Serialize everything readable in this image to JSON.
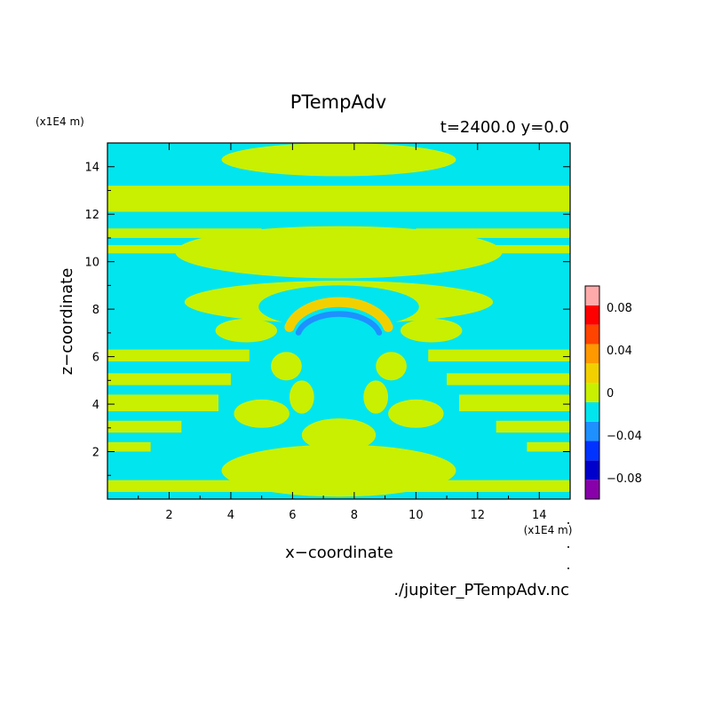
{
  "chart_data": {
    "type": "heatmap",
    "title": "PTempAdv",
    "subtitle": "t=2400.0 y=0.0",
    "xlabel": "x−coordinate",
    "ylabel": "z−coordinate",
    "x_unit": "(x1E4 m)",
    "y_unit": "(x1E4 m)",
    "xlim": [
      0,
      15
    ],
    "ylim": [
      0,
      15
    ],
    "x_ticks": [
      2,
      4,
      6,
      8,
      10,
      12,
      14
    ],
    "y_ticks": [
      2,
      4,
      6,
      8,
      10,
      12,
      14
    ],
    "source": "./jupiter_PTempAdv.nc",
    "colorbar": {
      "levels": [
        -0.1,
        -0.08,
        -0.06,
        -0.04,
        -0.02,
        0,
        0.02,
        0.04,
        0.06,
        0.08,
        0.1
      ],
      "colors": [
        "#8800aa",
        "#0000cc",
        "#0033ff",
        "#1e90ff",
        "#00e5ee",
        "#c8f000",
        "#f2d000",
        "#ff9900",
        "#ff4400",
        "#ff0000",
        "#ffaaaa"
      ],
      "tick_labels": [
        {
          "value": 0.08,
          "label": "0.08"
        },
        {
          "value": 0.04,
          "label": "0.04"
        },
        {
          "value": 0,
          "label": "0"
        },
        {
          "value": -0.04,
          "label": "−0.04"
        },
        {
          "value": -0.08,
          "label": "−0.08"
        }
      ]
    },
    "background_value": -0.01,
    "regions": [
      {
        "kind": "band",
        "z": [
          13.2,
          12.1
        ],
        "x": [
          0,
          15
        ],
        "value": 0.01
      },
      {
        "kind": "band",
        "z": [
          11.4,
          11.0
        ],
        "x": [
          0,
          5.0
        ],
        "value": 0.01
      },
      {
        "kind": "band",
        "z": [
          11.4,
          11.0
        ],
        "x": [
          10.0,
          15
        ],
        "value": 0.01
      },
      {
        "kind": "band",
        "z": [
          10.7,
          10.35
        ],
        "x": [
          0,
          4.2
        ],
        "value": 0.01
      },
      {
        "kind": "band",
        "z": [
          10.7,
          10.35
        ],
        "x": [
          10.8,
          15
        ],
        "value": 0.01
      },
      {
        "kind": "band",
        "z": [
          6.3,
          5.8
        ],
        "x": [
          0,
          4.6
        ],
        "value": 0.01
      },
      {
        "kind": "band",
        "z": [
          6.3,
          5.8
        ],
        "x": [
          10.4,
          15
        ],
        "value": 0.01
      },
      {
        "kind": "band",
        "z": [
          5.3,
          4.8
        ],
        "x": [
          0,
          4.0
        ],
        "value": 0.01
      },
      {
        "kind": "band",
        "z": [
          5.3,
          4.8
        ],
        "x": [
          11.0,
          15
        ],
        "value": 0.01
      },
      {
        "kind": "band",
        "z": [
          4.4,
          3.7
        ],
        "x": [
          0,
          3.6
        ],
        "value": 0.01
      },
      {
        "kind": "band",
        "z": [
          4.4,
          3.7
        ],
        "x": [
          11.4,
          15
        ],
        "value": 0.01
      },
      {
        "kind": "band",
        "z": [
          3.3,
          2.8
        ],
        "x": [
          0,
          2.4
        ],
        "value": 0.01
      },
      {
        "kind": "band",
        "z": [
          3.3,
          2.8
        ],
        "x": [
          12.6,
          15
        ],
        "value": 0.01
      },
      {
        "kind": "band",
        "z": [
          2.4,
          2.0
        ],
        "x": [
          0,
          1.4
        ],
        "value": 0.01
      },
      {
        "kind": "band",
        "z": [
          2.4,
          2.0
        ],
        "x": [
          13.6,
          15
        ],
        "value": 0.01
      },
      {
        "kind": "band",
        "z": [
          0.8,
          0.3
        ],
        "x": [
          0,
          15
        ],
        "value": 0.01
      },
      {
        "kind": "blob",
        "cx": 7.5,
        "cz": 14.3,
        "rx": 3.8,
        "rz": 0.7,
        "value": 0.01
      },
      {
        "kind": "blob",
        "cx": 7.5,
        "cz": 10.4,
        "rx": 5.3,
        "rz": 1.1,
        "value": 0.01
      },
      {
        "kind": "blob",
        "cx": 7.5,
        "cz": 8.3,
        "rx": 5.0,
        "rz": 0.9,
        "value": 0.01
      },
      {
        "kind": "blob",
        "cx": 4.5,
        "cz": 7.1,
        "rx": 1.0,
        "rz": 0.5,
        "value": 0.01
      },
      {
        "kind": "blob",
        "cx": 10.5,
        "cz": 7.1,
        "rx": 1.0,
        "rz": 0.5,
        "value": 0.01
      },
      {
        "kind": "blob",
        "cx": 7.5,
        "cz": 1.2,
        "rx": 3.8,
        "rz": 1.1,
        "value": 0.01
      },
      {
        "kind": "blob",
        "cx": 5.0,
        "cz": 3.6,
        "rx": 0.9,
        "rz": 0.6,
        "value": 0.01
      },
      {
        "kind": "blob",
        "cx": 10.0,
        "cz": 3.6,
        "rx": 0.9,
        "rz": 0.6,
        "value": 0.01
      },
      {
        "kind": "blob",
        "cx": 7.5,
        "cz": 2.7,
        "rx": 1.2,
        "rz": 0.7,
        "value": 0.01
      },
      {
        "kind": "blob",
        "cx": 6.3,
        "cz": 4.3,
        "rx": 0.4,
        "rz": 0.7,
        "value": 0.01
      },
      {
        "kind": "blob",
        "cx": 8.7,
        "cz": 4.3,
        "rx": 0.4,
        "rz": 0.7,
        "value": 0.01
      },
      {
        "kind": "blob",
        "cx": 5.8,
        "cz": 5.6,
        "rx": 0.5,
        "rz": 0.6,
        "value": 0.01
      },
      {
        "kind": "blob",
        "cx": 9.2,
        "cz": 5.6,
        "rx": 0.5,
        "rz": 0.6,
        "value": 0.01
      },
      {
        "kind": "blob",
        "cx": 7.5,
        "cz": 8.1,
        "rx": 2.6,
        "rz": 0.9,
        "value": -0.01
      },
      {
        "kind": "arc",
        "cx": 7.5,
        "cz": 6.9,
        "rx": 1.65,
        "rz": 1.4,
        "width": 0.42,
        "value": 0.03
      },
      {
        "kind": "arc",
        "cx": 7.5,
        "cz": 6.75,
        "rx": 1.35,
        "rz": 1.05,
        "width": 0.24,
        "value": -0.03
      }
    ]
  }
}
